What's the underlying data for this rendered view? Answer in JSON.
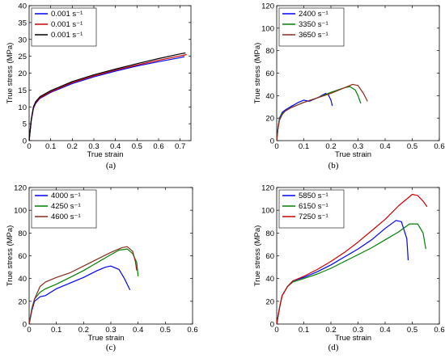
{
  "chart_data": [
    {
      "panel": "(a)",
      "type": "line",
      "xlabel": "True strain",
      "ylabel": "True stress (MPa)",
      "xlim": [
        0,
        0.75
      ],
      "ylim": [
        0,
        40
      ],
      "xticks": [
        "0",
        "0.1",
        "0.2",
        "0.3",
        "0.4",
        "0.5",
        "0.6",
        "0.7"
      ],
      "yticks": [
        "0",
        "5",
        "10",
        "15",
        "20",
        "25",
        "30",
        "35",
        "40"
      ],
      "legend_position": "top-left",
      "series": [
        {
          "name": "0.001 s⁻¹",
          "color": "#0000ff",
          "x": [
            0,
            0.01,
            0.02,
            0.03,
            0.05,
            0.1,
            0.2,
            0.3,
            0.4,
            0.5,
            0.6,
            0.7,
            0.72
          ],
          "y": [
            0,
            6,
            9.5,
            11,
            12.5,
            14.3,
            16.9,
            18.9,
            20.6,
            22.1,
            23.4,
            24.6,
            24.9
          ]
        },
        {
          "name": "0.001 s⁻¹",
          "color": "#cc0000",
          "x": [
            0,
            0.01,
            0.02,
            0.03,
            0.05,
            0.1,
            0.2,
            0.3,
            0.4,
            0.5,
            0.6,
            0.7,
            0.73
          ],
          "y": [
            0,
            6.2,
            9.7,
            11.2,
            12.7,
            14.5,
            17.2,
            19.2,
            20.9,
            22.4,
            23.8,
            25.1,
            25.5
          ]
        },
        {
          "name": "0.001 s⁻¹",
          "color": "#000000",
          "x": [
            0,
            0.01,
            0.02,
            0.03,
            0.05,
            0.1,
            0.2,
            0.3,
            0.4,
            0.5,
            0.6,
            0.7,
            0.725
          ],
          "y": [
            0,
            6.4,
            10,
            11.5,
            13,
            14.8,
            17.5,
            19.5,
            21.2,
            22.8,
            24.3,
            25.7,
            26
          ]
        }
      ]
    },
    {
      "panel": "(b)",
      "type": "line",
      "xlabel": "True strain",
      "ylabel": "True stress (MPa)",
      "xlim": [
        0,
        0.6
      ],
      "ylim": [
        0,
        120
      ],
      "xticks": [
        "0",
        "0.1",
        "0.2",
        "0.3",
        "0.4",
        "0.5",
        "0.6"
      ],
      "yticks": [
        "0",
        "20",
        "40",
        "60",
        "80",
        "100",
        "120"
      ],
      "legend_position": "top-left",
      "series": [
        {
          "name": "2400 s⁻¹",
          "color": "#0000ff",
          "x": [
            0,
            0.005,
            0.01,
            0.02,
            0.03,
            0.05,
            0.08,
            0.1,
            0.12,
            0.15,
            0.18,
            0.19,
            0.2,
            0.205
          ],
          "y": [
            0,
            12,
            20,
            25,
            27,
            30,
            34,
            36,
            35,
            38,
            42,
            41,
            36,
            31
          ]
        },
        {
          "name": "3350 s⁻¹",
          "color": "#008000",
          "x": [
            0,
            0.005,
            0.01,
            0.02,
            0.03,
            0.05,
            0.08,
            0.1,
            0.15,
            0.2,
            0.25,
            0.27,
            0.29,
            0.3,
            0.31
          ],
          "y": [
            0,
            12,
            19,
            24,
            26,
            29,
            32,
            34,
            38,
            43,
            47,
            48,
            45,
            40,
            33
          ]
        },
        {
          "name": "3650 s⁻¹",
          "color": "#8b2a1a",
          "x": [
            0,
            0.005,
            0.01,
            0.02,
            0.03,
            0.05,
            0.08,
            0.1,
            0.15,
            0.2,
            0.25,
            0.28,
            0.3,
            0.32,
            0.335
          ],
          "y": [
            0,
            11,
            18,
            23,
            26,
            29,
            32,
            34,
            38,
            42,
            47,
            50,
            49,
            42,
            35
          ]
        }
      ]
    },
    {
      "panel": "(c)",
      "type": "line",
      "xlabel": "True strain",
      "ylabel": "True stress (MPa)",
      "xlim": [
        0,
        0.6
      ],
      "ylim": [
        0,
        120
      ],
      "xticks": [
        "0",
        "0.1",
        "0.2",
        "0.3",
        "0.4",
        "0.5",
        "0.6"
      ],
      "yticks": [
        "0",
        "20",
        "40",
        "60",
        "80",
        "100",
        "120"
      ],
      "legend_position": "top-left",
      "series": [
        {
          "name": "4000 s⁻¹",
          "color": "#0000ff",
          "x": [
            0,
            0.01,
            0.02,
            0.04,
            0.06,
            0.1,
            0.15,
            0.2,
            0.25,
            0.28,
            0.3,
            0.33,
            0.35,
            0.37
          ],
          "y": [
            0,
            12,
            20,
            24,
            25,
            31,
            36,
            41,
            47,
            50,
            51,
            48,
            40,
            30
          ]
        },
        {
          "name": "4250 s⁻¹",
          "color": "#008000",
          "x": [
            0,
            0.01,
            0.02,
            0.04,
            0.06,
            0.1,
            0.15,
            0.2,
            0.25,
            0.3,
            0.33,
            0.36,
            0.38,
            0.395,
            0.4
          ],
          "y": [
            0,
            14,
            22,
            28,
            31,
            35,
            41,
            47,
            54,
            61,
            65,
            66,
            62,
            54,
            42
          ]
        },
        {
          "name": "4600 s⁻¹",
          "color": "#8b2a1a",
          "x": [
            0,
            0.01,
            0.02,
            0.04,
            0.06,
            0.1,
            0.15,
            0.2,
            0.25,
            0.3,
            0.34,
            0.36,
            0.38,
            0.39,
            0.395
          ],
          "y": [
            0,
            13,
            22,
            33,
            37,
            41,
            45,
            51,
            57,
            63,
            67,
            68,
            64,
            55,
            47
          ]
        }
      ]
    },
    {
      "panel": "(d)",
      "type": "line",
      "xlabel": "True strain",
      "ylabel": "True stress (MPa)",
      "xlim": [
        0,
        0.6
      ],
      "ylim": [
        0,
        120
      ],
      "xticks": [
        "0",
        "0.1",
        "0.2",
        "0.3",
        "0.4",
        "0.5",
        "0.6"
      ],
      "yticks": [
        "0",
        "20",
        "40",
        "60",
        "80",
        "100",
        "120"
      ],
      "legend_position": "top-left",
      "series": [
        {
          "name": "5850 s⁻¹",
          "color": "#0000ff",
          "x": [
            0,
            0.01,
            0.02,
            0.04,
            0.06,
            0.1,
            0.15,
            0.2,
            0.25,
            0.3,
            0.35,
            0.4,
            0.44,
            0.46,
            0.48,
            0.485
          ],
          "y": [
            0,
            14,
            25,
            33,
            38,
            41,
            46,
            52,
            59,
            66,
            74,
            84,
            91,
            90,
            75,
            56
          ]
        },
        {
          "name": "6150 s⁻¹",
          "color": "#008000",
          "x": [
            0,
            0.01,
            0.02,
            0.04,
            0.06,
            0.1,
            0.15,
            0.2,
            0.25,
            0.3,
            0.35,
            0.4,
            0.45,
            0.49,
            0.52,
            0.54,
            0.55
          ],
          "y": [
            0,
            14,
            25,
            33,
            37,
            40,
            44,
            49,
            55,
            61,
            67,
            74,
            81,
            88,
            88,
            80,
            66
          ]
        },
        {
          "name": "7250 s⁻¹",
          "color": "#cc0000",
          "x": [
            0,
            0.01,
            0.02,
            0.04,
            0.06,
            0.1,
            0.15,
            0.2,
            0.25,
            0.3,
            0.35,
            0.4,
            0.45,
            0.5,
            0.52,
            0.54,
            0.555
          ],
          "y": [
            0,
            14,
            25,
            33,
            38,
            42,
            48,
            55,
            63,
            72,
            82,
            92,
            104,
            114,
            113,
            108,
            103
          ]
        }
      ]
    }
  ]
}
